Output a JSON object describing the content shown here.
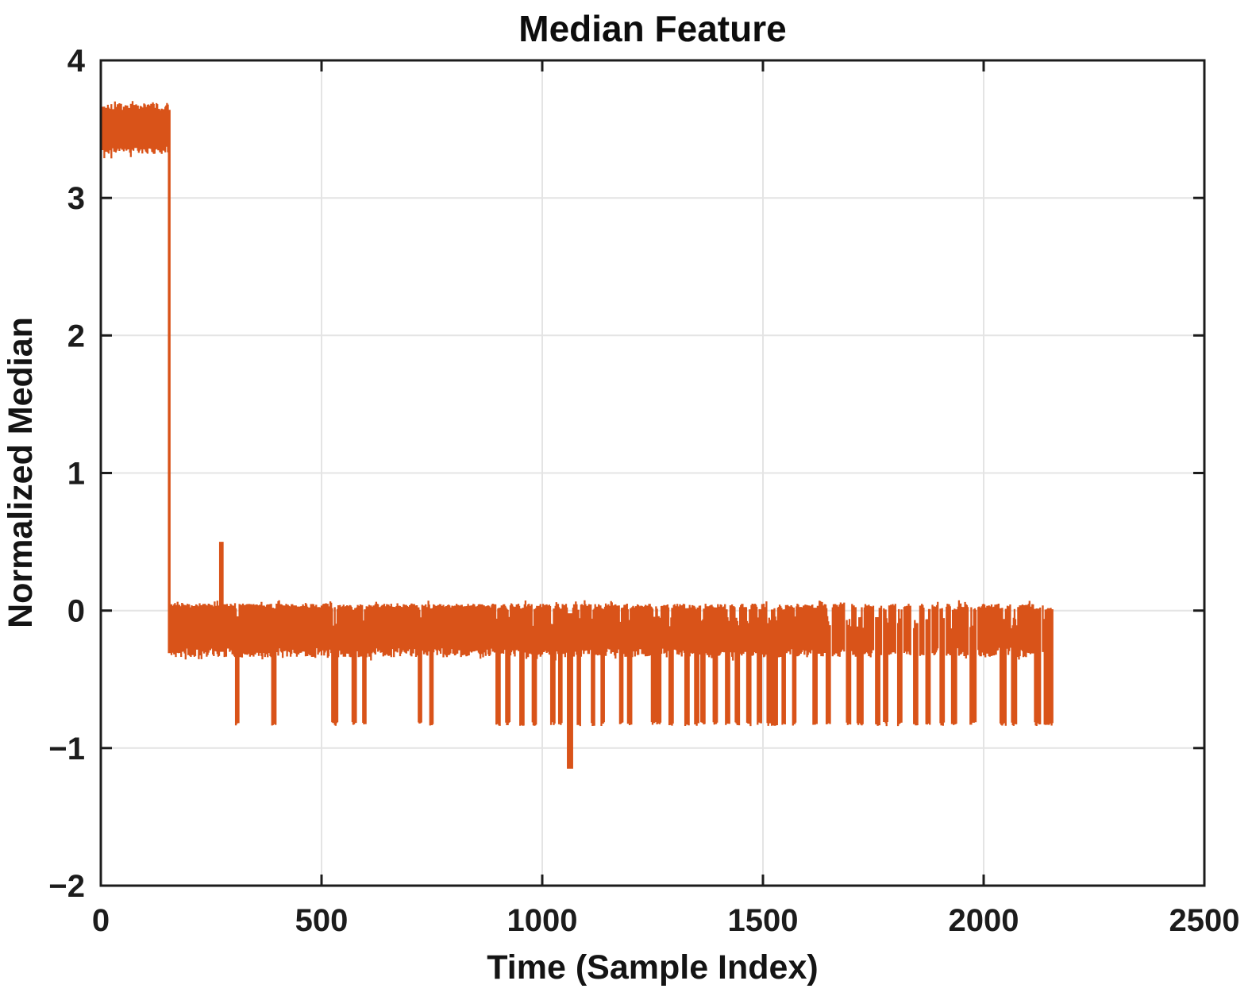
{
  "chart_data": {
    "type": "line",
    "title": "Median Feature",
    "xlabel": "Time (Sample Index)",
    "ylabel": "Normalized Median",
    "xlim": [
      0,
      2500
    ],
    "ylim": [
      -2,
      4
    ],
    "x_ticks": [
      0,
      500,
      1000,
      1500,
      2000,
      2500
    ],
    "y_ticks": [
      -2,
      -1,
      0,
      1,
      2,
      3,
      4
    ],
    "grid": true,
    "legend": "none",
    "line_color": "#D95319",
    "axis_color": "#1c1c1c",
    "grid_color": "#E4E4E4",
    "background_color": "#FFFFFF",
    "series": [
      {
        "name": "Normalized Median",
        "x_start": 0,
        "x_end": 2158,
        "segments": [
          {
            "name": "initial-high-block",
            "x_start": 0,
            "x_end": 152,
            "y_min": 3.33,
            "y_max": 3.68,
            "y_mean": 3.5
          },
          {
            "name": "step-drop",
            "x": 155,
            "y_from": 3.64,
            "y_to": -0.31
          },
          {
            "name": "noise-band",
            "x_start": 158,
            "x_end": 2158,
            "y_top": 0.03,
            "y_bottom": -0.31
          }
        ],
        "spike_up": {
          "x": 273,
          "y": 0.5
        },
        "deep_dip": {
          "x": 1063,
          "y": -1.15
        },
        "dip_level": -0.81,
        "dip_intervals": [
          [
            305,
            312
          ],
          [
            388,
            396
          ],
          [
            524,
            537
          ],
          [
            570,
            578
          ],
          [
            593,
            601
          ],
          [
            719,
            727
          ],
          [
            745,
            753
          ],
          [
            896,
            904
          ],
          [
            918,
            926
          ],
          [
            950,
            958
          ],
          [
            978,
            986
          ],
          [
            1020,
            1028
          ],
          [
            1037,
            1045
          ],
          [
            1057,
            1064
          ],
          [
            1079,
            1087
          ],
          [
            1111,
            1119
          ],
          [
            1133,
            1141
          ],
          [
            1175,
            1183
          ],
          [
            1194,
            1202
          ],
          [
            1247,
            1256
          ],
          [
            1260,
            1268
          ],
          [
            1288,
            1296
          ],
          [
            1324,
            1333
          ],
          [
            1346,
            1355
          ],
          [
            1360,
            1368
          ],
          [
            1388,
            1396
          ],
          [
            1416,
            1424
          ],
          [
            1438,
            1446
          ],
          [
            1463,
            1472
          ],
          [
            1488,
            1496
          ],
          [
            1509,
            1532
          ],
          [
            1543,
            1551
          ],
          [
            1567,
            1575
          ],
          [
            1613,
            1622
          ],
          [
            1644,
            1653
          ],
          [
            1689,
            1698
          ],
          [
            1714,
            1726
          ],
          [
            1755,
            1764
          ],
          [
            1773,
            1782
          ],
          [
            1805,
            1815
          ],
          [
            1841,
            1851
          ],
          [
            1869,
            1879
          ],
          [
            1901,
            1911
          ],
          [
            1928,
            1938
          ],
          [
            1969,
            1983
          ],
          [
            2038,
            2050
          ],
          [
            2064,
            2074
          ],
          [
            2116,
            2129
          ],
          [
            2138,
            2157
          ]
        ]
      }
    ]
  }
}
